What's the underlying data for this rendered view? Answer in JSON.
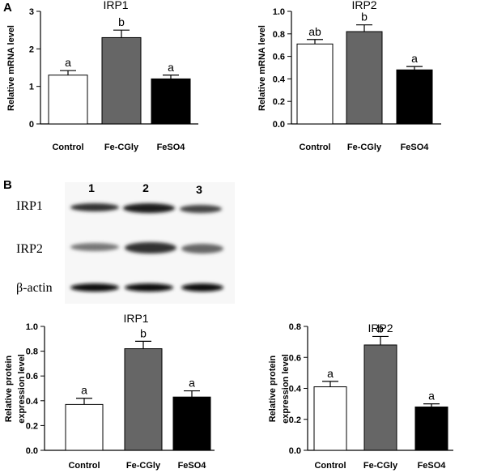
{
  "panel_labels": [
    "A",
    "B"
  ],
  "blot": {
    "lanes": [
      "1",
      "2",
      "3"
    ],
    "rows": [
      "IRP1",
      "IRP2",
      "β-actin"
    ]
  },
  "chart_data": [
    {
      "type": "bar",
      "title": "IRP1",
      "ylabel": [
        "Relative mRNA level"
      ],
      "categories": [
        "Control",
        "Fe-CGly",
        "FeSO4"
      ],
      "values": [
        1.3,
        2.3,
        1.2
      ],
      "errors": [
        0.12,
        0.2,
        0.1
      ],
      "annotations": [
        "a",
        "b",
        "a"
      ],
      "colors": [
        "#ffffff",
        "#666666",
        "#000000"
      ],
      "ylim": [
        0,
        3
      ],
      "yticks": [
        0,
        1,
        2,
        3
      ]
    },
    {
      "type": "bar",
      "title": "IRP2",
      "ylabel": [
        "Relative mRNA level"
      ],
      "categories": [
        "Control",
        "Fe-CGly",
        "FeSO4"
      ],
      "values": [
        0.71,
        0.82,
        0.48
      ],
      "errors": [
        0.04,
        0.06,
        0.03
      ],
      "annotations": [
        "ab",
        "b",
        "a"
      ],
      "colors": [
        "#ffffff",
        "#666666",
        "#000000"
      ],
      "ylim": [
        0,
        1
      ],
      "yticks": [
        {
          "value": 0,
          "label": "0.0"
        },
        0.2,
        0.4,
        0.6,
        0.8,
        {
          "value": 1,
          "label": "1.0"
        }
      ]
    },
    {
      "type": "bar",
      "title": "IRP1",
      "ylabel": [
        "Relative protein",
        "expression level"
      ],
      "categories": [
        "Control",
        "Fe-CGly",
        "FeSO4"
      ],
      "values": [
        0.37,
        0.82,
        0.43
      ],
      "errors": [
        0.05,
        0.06,
        0.05
      ],
      "annotations": [
        "a",
        "b",
        "a"
      ],
      "colors": [
        "#ffffff",
        "#666666",
        "#000000"
      ],
      "ylim": [
        0,
        1
      ],
      "yticks": [
        {
          "value": 0,
          "label": "0.0"
        },
        0.2,
        0.4,
        0.6,
        0.8,
        {
          "value": 1,
          "label": "1.0"
        }
      ]
    },
    {
      "type": "bar",
      "title": "IRP2",
      "ylabel": [
        "Relative protein",
        "expression level"
      ],
      "categories": [
        "Control",
        "Fe-CGly",
        "FeSO4"
      ],
      "values": [
        0.41,
        0.68,
        0.28
      ],
      "errors": [
        0.035,
        0.055,
        0.02
      ],
      "annotations": [
        "a",
        "b",
        "a"
      ],
      "colors": [
        "#ffffff",
        "#666666",
        "#000000"
      ],
      "ylim": [
        0,
        0.8
      ],
      "yticks": [
        {
          "value": 0,
          "label": "0.0"
        },
        0.2,
        0.4,
        0.6,
        0.8
      ]
    }
  ]
}
